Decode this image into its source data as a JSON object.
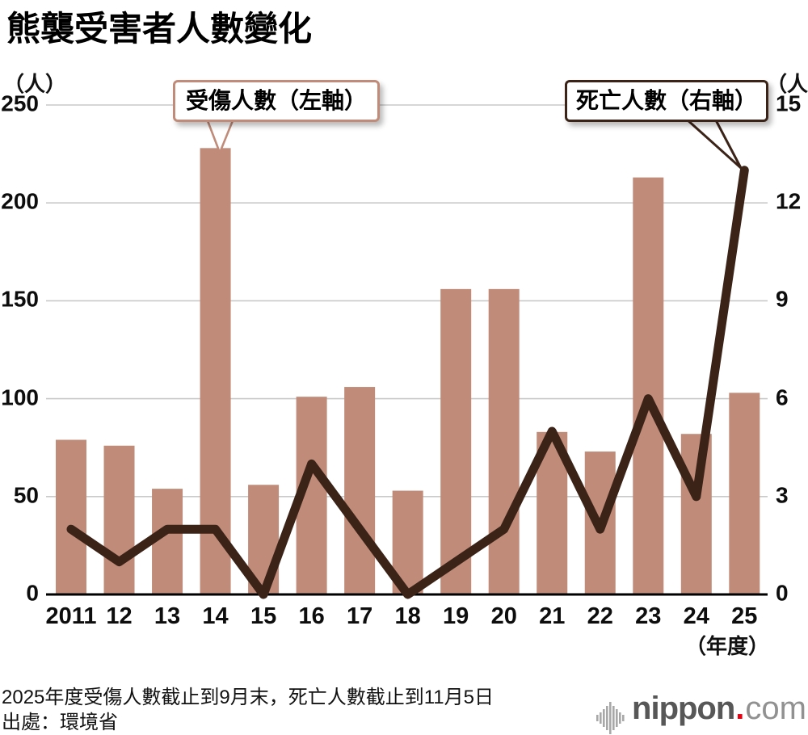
{
  "header": {
    "title": "熊襲受害者人數變化"
  },
  "axes": {
    "left_unit": "（人）",
    "right_unit": "（人）",
    "x_unit": "（年度）"
  },
  "callouts": {
    "injured_label": "受傷人數（左軸）",
    "deaths_label": "死亡人數（右軸）"
  },
  "chart_data": {
    "type": "bar",
    "title": "熊襲受害者人數變化",
    "categories": [
      "2011",
      "12",
      "13",
      "14",
      "15",
      "16",
      "17",
      "18",
      "19",
      "20",
      "21",
      "22",
      "23",
      "24",
      "25"
    ],
    "series": [
      {
        "name": "受傷人數（左軸）",
        "type": "bar",
        "axis": "left",
        "color": "#c08c79",
        "values": [
          79,
          76,
          54,
          228,
          56,
          101,
          106,
          53,
          156,
          156,
          83,
          73,
          213,
          82,
          103
        ]
      },
      {
        "name": "死亡人數（右軸）",
        "type": "line",
        "axis": "right",
        "color": "#3b2318",
        "values": [
          2,
          1,
          2,
          2,
          0,
          4,
          2,
          0,
          1,
          2,
          5,
          2,
          6,
          3,
          13
        ]
      }
    ],
    "left_axis": {
      "label": "（人）",
      "min": 0,
      "max": 250,
      "ticks": [
        0,
        50,
        100,
        150,
        200,
        250
      ]
    },
    "right_axis": {
      "label": "（人）",
      "min": 0,
      "max": 15,
      "ticks": [
        0,
        3,
        6,
        9,
        12,
        15
      ]
    },
    "xlabel": "（年度）",
    "grid": true,
    "legend_position": "callouts"
  },
  "footer": {
    "note1": "2025年度受傷人數截止到9月末，死亡人數截止到11月5日",
    "note2": "出處：環境省",
    "logo": {
      "brand": "nippon",
      "dot": ".",
      "tld": "com"
    }
  },
  "colors": {
    "bar": "#c08c79",
    "line": "#3b2318",
    "grid": "#c9c9c9",
    "axis": "#000000",
    "logo_gray": "#575757",
    "logo_light": "#919191",
    "logo_red": "#e60012",
    "wave_gray": "#a8a8a8"
  }
}
